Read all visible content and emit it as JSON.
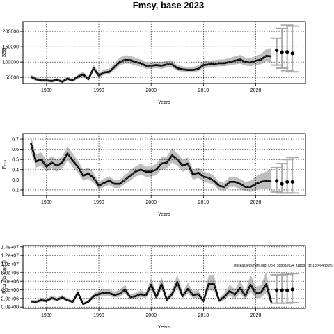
{
  "figure": {
    "title": "Fmsy, base 2023",
    "footnote": "stockassessment.org, DoR_sgbba2024_f1858f_git:1cc464b80f6f"
  },
  "colors": {
    "band": "#bebebe",
    "line": "#000000",
    "line_dash": "#555555",
    "proj_bar": "#a9a9a9",
    "point": "#000000",
    "grid": "#000000"
  },
  "chart_data": [
    {
      "type": "line",
      "name": "ssb",
      "title": "Fmsy, base 2023",
      "xlabel": "Years",
      "ylabel": "SSB",
      "xlim": [
        1975.5,
        2029.5
      ],
      "ylim": [
        30000,
        232000
      ],
      "xticks": [
        1980,
        1990,
        2000,
        2010,
        2020
      ],
      "xtick_labels": [
        "1980",
        "1990",
        "2000",
        "2010",
        "2020"
      ],
      "yticks": [
        50000,
        100000,
        150000,
        200000
      ],
      "ytick_labels": [
        "50000",
        "100000",
        "150000",
        "200000"
      ],
      "grid": true,
      "years": [
        1977,
        1978,
        1979,
        1980,
        1981,
        1982,
        1983,
        1984,
        1985,
        1986,
        1987,
        1988,
        1989,
        1990,
        1991,
        1992,
        1993,
        1994,
        1995,
        1996,
        1997,
        1998,
        1999,
        2000,
        2001,
        2002,
        2003,
        2004,
        2005,
        2006,
        2007,
        2008,
        2009,
        2010,
        2011,
        2012,
        2013,
        2014,
        2015,
        2016,
        2017,
        2018,
        2019,
        2020,
        2021,
        2022,
        2023
      ],
      "estimate": [
        52000,
        44000,
        40000,
        40000,
        38000,
        42000,
        36000,
        46000,
        40000,
        52000,
        60000,
        44000,
        80000,
        56000,
        66000,
        68000,
        84000,
        100000,
        107000,
        106000,
        100000,
        96000,
        88000,
        88000,
        90000,
        88000,
        92000,
        92000,
        80000,
        76000,
        74000,
        74000,
        78000,
        90000,
        92000,
        94000,
        96000,
        96000,
        100000,
        104000,
        108000,
        100000,
        98000,
        104000,
        108000,
        120000,
        118000
      ],
      "lower": [
        46000,
        38000,
        35000,
        35000,
        33000,
        37000,
        31000,
        40000,
        35000,
        46000,
        52000,
        38000,
        70000,
        49000,
        58000,
        60000,
        74000,
        89000,
        95000,
        94000,
        88000,
        85000,
        78000,
        78000,
        80000,
        78000,
        82000,
        82000,
        71000,
        68000,
        66000,
        66000,
        70000,
        80000,
        82000,
        84000,
        86000,
        86000,
        89000,
        92000,
        95000,
        88000,
        86000,
        90000,
        93000,
        102000,
        98000
      ],
      "upper": [
        59000,
        51000,
        46000,
        46000,
        44000,
        48000,
        42000,
        53000,
        46000,
        59000,
        69000,
        51000,
        92000,
        64000,
        76000,
        78000,
        96000,
        114000,
        122000,
        120000,
        114000,
        108000,
        100000,
        99000,
        101000,
        99000,
        104000,
        104000,
        90000,
        86000,
        84000,
        84000,
        88000,
        102000,
        104000,
        106000,
        108000,
        109000,
        113000,
        118000,
        123000,
        114000,
        112000,
        120000,
        126000,
        142000,
        145000
      ],
      "projection": {
        "years": [
          2024,
          2025,
          2026,
          2027
        ],
        "median": [
          138000,
          132000,
          133000,
          128000
        ],
        "lower": [
          90000,
          80000,
          72000,
          68000
        ],
        "upper": [
          178000,
          210000,
          220000,
          217000
        ]
      }
    },
    {
      "type": "line",
      "name": "fbar",
      "xlabel": "Years",
      "ylabel": "F₂₋₆",
      "xlim": [
        1975.5,
        2029.5
      ],
      "ylim": [
        0.145,
        0.755
      ],
      "xticks": [
        1980,
        1990,
        2000,
        2010,
        2020
      ],
      "xtick_labels": [
        "1980",
        "1990",
        "2000",
        "2010",
        "2020"
      ],
      "yticks": [
        0.2,
        0.3,
        0.4,
        0.5,
        0.6,
        0.7
      ],
      "ytick_labels": [
        "0.2",
        "0.3",
        "0.4",
        "0.5",
        "0.6",
        "0.7"
      ],
      "grid": true,
      "years": [
        1977,
        1978,
        1979,
        1980,
        1981,
        1982,
        1983,
        1984,
        1985,
        1986,
        1987,
        1988,
        1989,
        1990,
        1991,
        1992,
        1993,
        1994,
        1995,
        1996,
        1997,
        1998,
        1999,
        2000,
        2001,
        2002,
        2003,
        2004,
        2005,
        2006,
        2007,
        2008,
        2009,
        2010,
        2011,
        2012,
        2013,
        2014,
        2015,
        2016,
        2017,
        2018,
        2019,
        2020,
        2021,
        2022,
        2023
      ],
      "estimate": [
        0.66,
        0.48,
        0.5,
        0.43,
        0.47,
        0.44,
        0.47,
        0.56,
        0.49,
        0.43,
        0.34,
        0.36,
        0.32,
        0.24,
        0.27,
        0.29,
        0.26,
        0.26,
        0.3,
        0.34,
        0.38,
        0.4,
        0.38,
        0.38,
        0.4,
        0.46,
        0.47,
        0.54,
        0.5,
        0.44,
        0.46,
        0.35,
        0.37,
        0.33,
        0.32,
        0.29,
        0.24,
        0.23,
        0.28,
        0.28,
        0.26,
        0.23,
        0.23,
        0.26,
        0.28,
        0.29,
        0.29
      ],
      "lower": [
        0.58,
        0.42,
        0.44,
        0.38,
        0.41,
        0.38,
        0.41,
        0.49,
        0.43,
        0.37,
        0.29,
        0.31,
        0.27,
        0.21,
        0.23,
        0.25,
        0.22,
        0.22,
        0.26,
        0.29,
        0.33,
        0.35,
        0.33,
        0.33,
        0.35,
        0.4,
        0.41,
        0.47,
        0.44,
        0.38,
        0.4,
        0.3,
        0.32,
        0.28,
        0.27,
        0.25,
        0.2,
        0.19,
        0.23,
        0.23,
        0.21,
        0.19,
        0.18,
        0.2,
        0.21,
        0.21,
        0.2
      ],
      "upper": [
        0.74,
        0.55,
        0.57,
        0.49,
        0.53,
        0.5,
        0.53,
        0.63,
        0.56,
        0.49,
        0.4,
        0.42,
        0.37,
        0.28,
        0.31,
        0.33,
        0.3,
        0.3,
        0.35,
        0.39,
        0.43,
        0.46,
        0.43,
        0.43,
        0.46,
        0.52,
        0.53,
        0.61,
        0.56,
        0.5,
        0.52,
        0.4,
        0.42,
        0.38,
        0.37,
        0.34,
        0.28,
        0.27,
        0.33,
        0.33,
        0.31,
        0.28,
        0.29,
        0.33,
        0.36,
        0.38,
        0.41
      ],
      "projection": {
        "years": [
          2024,
          2025,
          2026,
          2027
        ],
        "median": [
          0.29,
          0.26,
          0.28,
          0.28
        ],
        "lower": [
          0.18,
          0.17,
          0.17,
          0.17
        ],
        "upper": [
          0.42,
          0.46,
          0.5,
          0.52
        ]
      }
    },
    {
      "type": "line",
      "name": "recruits",
      "xlabel": "Years",
      "ylabel": "Recruits (age0)",
      "xlim": [
        1975.5,
        2029.5
      ],
      "ylim": [
        -300000,
        14300000
      ],
      "xticks": [
        1980,
        1990,
        2000,
        2010,
        2020
      ],
      "xtick_labels": [
        "1980",
        "1990",
        "2000",
        "2010",
        "2020"
      ],
      "yticks": [
        0,
        2000000,
        4000000,
        6000000,
        8000000,
        10000000,
        12000000,
        14000000
      ],
      "ytick_labels": [
        "0.0e+00",
        "2.0e+06",
        "4.0e+06",
        "6.0e+06",
        "8.0e+06",
        "1.0e+07",
        "1.2e+07",
        "1.4e+07"
      ],
      "grid": true,
      "years": [
        1977,
        1978,
        1979,
        1980,
        1981,
        1982,
        1983,
        1984,
        1985,
        1986,
        1987,
        1988,
        1989,
        1990,
        1991,
        1992,
        1993,
        1994,
        1995,
        1996,
        1997,
        1998,
        1999,
        2000,
        2001,
        2002,
        2003,
        2004,
        2005,
        2006,
        2007,
        2008,
        2009,
        2010,
        2011,
        2012,
        2013,
        2014,
        2015,
        2016,
        2017,
        2018,
        2019,
        2020,
        2021,
        2022,
        2023
      ],
      "estimate": [
        1300000,
        1200000,
        1600000,
        1400000,
        2100000,
        1700000,
        2200000,
        1600000,
        1200000,
        3300000,
        700000,
        1200000,
        2500000,
        3000000,
        3300000,
        3200000,
        2800000,
        3100000,
        4000000,
        2300000,
        2500000,
        3000000,
        2700000,
        5200000,
        2300000,
        5300000,
        1700000,
        3000000,
        5800000,
        2500000,
        4200000,
        2800000,
        3000000,
        1400000,
        5400000,
        5400000,
        1500000,
        2400000,
        3700000,
        2900000,
        4400000,
        2600000,
        5200000,
        3200000,
        3400000,
        5300000,
        1000000
      ],
      "lower": [
        1000000,
        900000,
        1200000,
        1100000,
        1700000,
        1300000,
        1800000,
        1300000,
        900000,
        2700000,
        500000,
        900000,
        2000000,
        2400000,
        2600000,
        2500000,
        2200000,
        2400000,
        3100000,
        1800000,
        1900000,
        2300000,
        2100000,
        4000000,
        1800000,
        4000000,
        1300000,
        2300000,
        4300000,
        1900000,
        3100000,
        2100000,
        2200000,
        1000000,
        3900000,
        3800000,
        1100000,
        1700000,
        2600000,
        2000000,
        3100000,
        1800000,
        3500000,
        2100000,
        2200000,
        3300000,
        500000
      ],
      "upper": [
        1700000,
        1600000,
        2100000,
        1800000,
        2700000,
        2200000,
        2800000,
        2100000,
        1600000,
        4100000,
        1000000,
        1600000,
        3200000,
        3800000,
        4200000,
        4100000,
        3600000,
        4000000,
        5200000,
        3000000,
        3300000,
        3900000,
        3500000,
        6800000,
        3000000,
        7000000,
        2300000,
        3900000,
        7600000,
        3300000,
        5600000,
        3700000,
        4000000,
        1900000,
        7400000,
        7500000,
        2100000,
        3300000,
        5200000,
        4100000,
        6200000,
        3700000,
        7500000,
        4700000,
        5100000,
        8200000,
        2000000
      ],
      "projection": {
        "years": [
          2024,
          2025,
          2026,
          2027
        ],
        "median": [
          3900000,
          3900000,
          3900000,
          4100000
        ],
        "lower": [
          900000,
          900000,
          900000,
          1000000
        ],
        "upper": [
          7500000,
          7500000,
          7600000,
          7800000
        ]
      }
    }
  ]
}
